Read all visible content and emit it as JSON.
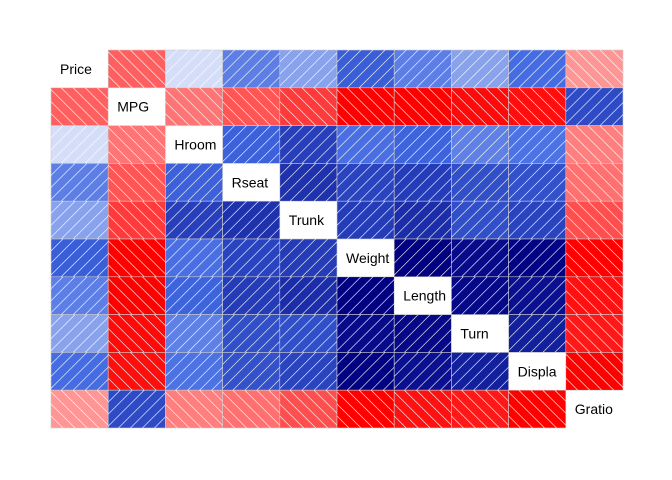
{
  "chart_data": {
    "type": "heatmap",
    "variables": [
      "Price",
      "MPG",
      "Hroom",
      "Rseat",
      "Trunk",
      "Weight",
      "Length",
      "Turn",
      "Displa",
      "Gratio"
    ],
    "matrix": [
      [
        1.0,
        -0.47,
        0.11,
        0.43,
        0.31,
        0.54,
        0.43,
        0.31,
        0.49,
        -0.31
      ],
      [
        -0.47,
        1.0,
        -0.41,
        -0.5,
        -0.58,
        -0.81,
        -0.8,
        -0.72,
        -0.71,
        0.62
      ],
      [
        0.11,
        -0.41,
        1.0,
        0.53,
        0.66,
        0.48,
        0.52,
        0.42,
        0.47,
        -0.38
      ],
      [
        0.43,
        -0.5,
        0.53,
        1.0,
        0.71,
        0.64,
        0.67,
        0.6,
        0.59,
        -0.42
      ],
      [
        0.31,
        -0.58,
        0.66,
        0.71,
        1.0,
        0.67,
        0.73,
        0.6,
        0.64,
        -0.52
      ],
      [
        0.54,
        -0.81,
        0.48,
        0.64,
        0.67,
        1.0,
        0.95,
        0.86,
        0.89,
        -0.76
      ],
      [
        0.43,
        -0.8,
        0.52,
        0.67,
        0.73,
        0.95,
        1.0,
        0.87,
        0.84,
        -0.7
      ],
      [
        0.31,
        -0.72,
        0.42,
        0.6,
        0.6,
        0.86,
        0.87,
        1.0,
        0.78,
        -0.68
      ],
      [
        0.49,
        -0.71,
        0.47,
        0.59,
        0.64,
        0.89,
        0.84,
        0.78,
        1.0,
        -0.83
      ],
      [
        -0.31,
        0.62,
        -0.38,
        -0.42,
        -0.52,
        -0.76,
        -0.7,
        -0.68,
        -0.83,
        1.0
      ]
    ],
    "range": [
      -1,
      1
    ],
    "colors": {
      "negative_strong": "#ff0000",
      "neutral": "#ffffff",
      "positive_strong": "#000080",
      "positive_mid": "#4169e1",
      "hatch": "#ffffff",
      "grid": "#cccccc"
    }
  }
}
